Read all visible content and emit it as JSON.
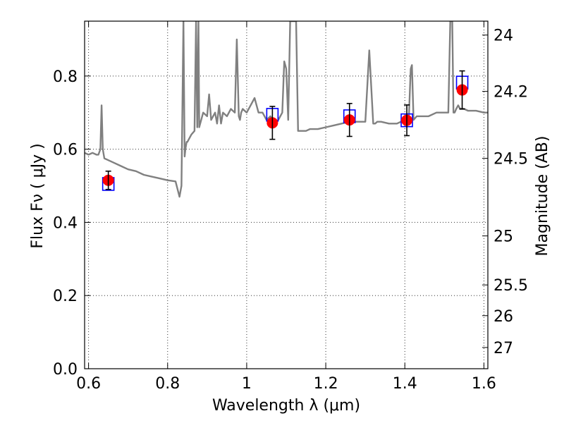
{
  "chart_data": {
    "type": "scatter",
    "xlabel": "Wavelength  λ (μm)",
    "ylabel": "Flux  Fν  ( μJy )",
    "y2label": "Magnitude (AB)",
    "xlim": [
      0.59,
      1.61
    ],
    "ylim": [
      0.0,
      0.95
    ],
    "grid": true,
    "x_ticks": [
      0.6,
      0.8,
      1.0,
      1.2,
      1.4,
      1.6
    ],
    "x_tick_labels": [
      "0.6",
      "0.8",
      "1",
      "1.2",
      "1.4",
      "1.6"
    ],
    "y_ticks": [
      0.0,
      0.2,
      0.4,
      0.6,
      0.8
    ],
    "y_tick_labels": [
      "0.0",
      "0.2",
      "0.4",
      "0.6",
      "0.8"
    ],
    "y2_ticks_flux": [
      0.912,
      0.758,
      0.575,
      0.363,
      0.229,
      0.145,
      0.058
    ],
    "y2_tick_labels": [
      "24",
      "24.2",
      "24.5",
      "25",
      "25.5",
      "26",
      "27"
    ],
    "series": [
      {
        "kind": "line",
        "color": "#808080",
        "x": [
          0.59,
          0.6,
          0.61,
          0.62,
          0.625,
          0.63,
          0.633,
          0.636,
          0.64,
          0.65,
          0.66,
          0.68,
          0.7,
          0.72,
          0.74,
          0.76,
          0.78,
          0.8,
          0.82,
          0.83,
          0.835,
          0.84,
          0.843,
          0.845,
          0.848,
          0.85,
          0.86,
          0.868,
          0.872,
          0.875,
          0.878,
          0.88,
          0.885,
          0.89,
          0.9,
          0.905,
          0.91,
          0.92,
          0.925,
          0.93,
          0.935,
          0.94,
          0.95,
          0.96,
          0.97,
          0.975,
          0.98,
          0.983,
          0.986,
          0.99,
          1.0,
          1.01,
          1.02,
          1.03,
          1.04,
          1.05,
          1.06,
          1.07,
          1.08,
          1.09,
          1.095,
          1.1,
          1.105,
          1.11,
          1.115,
          1.12,
          1.125,
          1.13,
          1.14,
          1.15,
          1.16,
          1.18,
          1.2,
          1.22,
          1.24,
          1.26,
          1.28,
          1.3,
          1.31,
          1.32,
          1.325,
          1.33,
          1.335,
          1.34,
          1.36,
          1.38,
          1.4,
          1.41,
          1.415,
          1.418,
          1.422,
          1.43,
          1.44,
          1.46,
          1.48,
          1.5,
          1.51,
          1.515,
          1.52,
          1.523,
          1.526,
          1.53,
          1.535,
          1.54,
          1.545,
          1.55,
          1.56,
          1.58,
          1.6,
          1.61
        ],
        "values": [
          0.59,
          0.585,
          0.59,
          0.585,
          0.585,
          0.6,
          0.72,
          0.6,
          0.575,
          0.57,
          0.565,
          0.555,
          0.545,
          0.54,
          0.53,
          0.525,
          0.52,
          0.515,
          0.512,
          0.47,
          0.5,
          0.95,
          0.58,
          0.6,
          0.62,
          0.62,
          0.64,
          0.65,
          0.95,
          0.66,
          0.95,
          0.66,
          0.68,
          0.7,
          0.69,
          0.75,
          0.68,
          0.7,
          0.67,
          0.72,
          0.67,
          0.7,
          0.69,
          0.71,
          0.7,
          0.9,
          0.69,
          0.68,
          0.7,
          0.71,
          0.7,
          0.72,
          0.74,
          0.7,
          0.7,
          0.68,
          0.69,
          0.67,
          0.68,
          0.7,
          0.84,
          0.82,
          0.68,
          0.95,
          0.95,
          0.95,
          0.95,
          0.65,
          0.65,
          0.65,
          0.655,
          0.655,
          0.66,
          0.665,
          0.67,
          0.675,
          0.675,
          0.675,
          0.87,
          0.67,
          0.67,
          0.675,
          0.675,
          0.675,
          0.67,
          0.67,
          0.68,
          0.68,
          0.82,
          0.83,
          0.68,
          0.69,
          0.69,
          0.69,
          0.7,
          0.7,
          0.7,
          0.95,
          0.95,
          0.7,
          0.7,
          0.71,
          0.72,
          0.71,
          0.71,
          0.71,
          0.705,
          0.705,
          0.7,
          0.7
        ]
      },
      {
        "kind": "points",
        "marker": "circle",
        "color": "#ff0000",
        "x": [
          0.65,
          1.065,
          1.26,
          1.405,
          1.545
        ],
        "values": [
          0.515,
          0.672,
          0.68,
          0.679,
          0.762
        ],
        "err": [
          0.025,
          0.045,
          0.045,
          0.042,
          0.052
        ]
      },
      {
        "kind": "points",
        "marker": "open-square",
        "color": "#0000ff",
        "x": [
          0.65,
          1.065,
          1.26,
          1.405,
          1.545
        ],
        "values": [
          0.505,
          0.694,
          0.69,
          0.679,
          0.782
        ]
      }
    ]
  }
}
